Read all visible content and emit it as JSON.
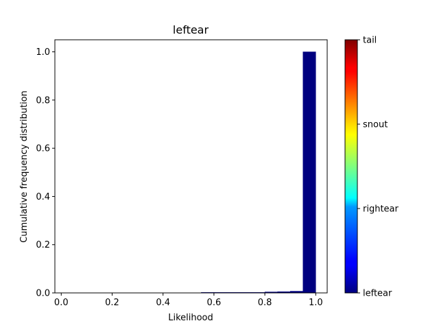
{
  "chart_data": {
    "type": "bar",
    "title": "leftear",
    "xlabel": "Likelihood",
    "ylabel": "Cumulative frequency distribution",
    "xlim": [
      -0.025,
      1.045
    ],
    "ylim": [
      0,
      1.05
    ],
    "xticks": [
      "0.0",
      "0.2",
      "0.4",
      "0.6",
      "0.8",
      "1.0"
    ],
    "yticks": [
      "0.0",
      "0.2",
      "0.4",
      "0.6",
      "0.8",
      "1.0"
    ],
    "bin_width": 0.05,
    "bins": [
      {
        "x": 0.55,
        "y": 0.002
      },
      {
        "x": 0.6,
        "y": 0.002
      },
      {
        "x": 0.65,
        "y": 0.002
      },
      {
        "x": 0.7,
        "y": 0.002
      },
      {
        "x": 0.75,
        "y": 0.002
      },
      {
        "x": 0.8,
        "y": 0.004
      },
      {
        "x": 0.85,
        "y": 0.005
      },
      {
        "x": 0.9,
        "y": 0.007
      },
      {
        "x": 0.95,
        "y": 1.0
      }
    ],
    "bar_color": "#00007f",
    "grid": false,
    "colorbar": {
      "labels": [
        "leftear",
        "rightear",
        "snout",
        "tail"
      ],
      "colormap": "jet"
    }
  }
}
